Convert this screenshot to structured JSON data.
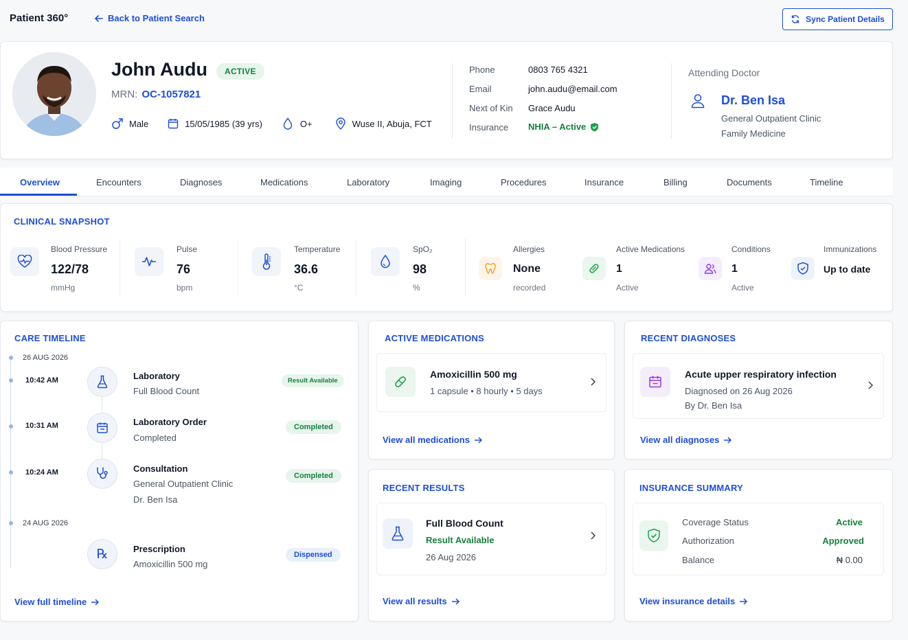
{
  "app": {
    "title": "Patient 360°",
    "back_link": "Back to Patient Search",
    "sync_button": "Sync Patient Details"
  },
  "patient": {
    "name": "John Audu",
    "status": "ACTIVE",
    "mrn_label": "MRN:",
    "mrn": "OC-1057821",
    "sex": "Male",
    "dob": "15/05/1985 (39 yrs)",
    "blood_group": "O+",
    "address": "Wuse II, Abuja, FCT"
  },
  "contact": {
    "phone_label": "Phone",
    "phone": "0803 765 4321",
    "email_label": "Email",
    "email": "john.audu@email.com",
    "kin_label": "Next of Kin",
    "kin": "Grace Audu",
    "insurance_label": "Insurance",
    "insurance": "NHIA – Active"
  },
  "doctor": {
    "heading": "Attending Doctor",
    "name": "Dr. Ben Isa",
    "clinic": "General Outpatient Clinic",
    "specialty": "Family Medicine"
  },
  "tabs": [
    "Overview",
    "Encounters",
    "Diagnoses",
    "Medications",
    "Laboratory",
    "Imaging",
    "Procedures",
    "Insurance",
    "Billing",
    "Documents",
    "Timeline"
  ],
  "active_tab": "Overview",
  "snapshot": {
    "title": "CLINICAL SNAPSHOT",
    "vitals": [
      {
        "label": "Blood Pressure",
        "value": "122/78",
        "unit": "mmHg",
        "icon": "heart-pulse-icon"
      },
      {
        "label": "Pulse",
        "value": "76",
        "unit": "bpm",
        "icon": "pulse-icon"
      },
      {
        "label": "Temperature",
        "value": "36.6",
        "unit": "°C",
        "icon": "thermometer-icon"
      },
      {
        "label": "SpO₂",
        "value": "98",
        "unit": "%",
        "icon": "drop-icon"
      }
    ],
    "summary": [
      {
        "label": "Allergies",
        "value": "None",
        "sub": "recorded",
        "icon": "allergy-icon"
      },
      {
        "label": "Active Medications",
        "value": "1",
        "sub": "Active",
        "icon": "pill-icon"
      },
      {
        "label": "Conditions",
        "value": "1",
        "sub": "Active",
        "icon": "people-icon"
      },
      {
        "label": "Immunizations",
        "value": "Up to date",
        "sub": "",
        "icon": "shield-icon"
      }
    ]
  },
  "timeline": {
    "title": "CARE TIMELINE",
    "date1": "26 AUG 2026",
    "date2": "24 AUG 2026",
    "events": [
      {
        "time": "10:42 AM",
        "title": "Laboratory",
        "sub1": "Full Blood Count",
        "sub2": "",
        "status": "Result Available",
        "icon": "flask-icon"
      },
      {
        "time": "10:31 AM",
        "title": "Laboratory Order",
        "sub1": "Completed",
        "sub2": "",
        "status": "Completed",
        "icon": "calendar-icon"
      },
      {
        "time": "10:24 AM",
        "title": "Consultation",
        "sub1": "General Outpatient Clinic",
        "sub2": "Dr. Ben Isa",
        "status": "Completed",
        "icon": "stethoscope-icon"
      },
      {
        "time": "",
        "title": "Prescription",
        "sub1": "Amoxicillin 500 mg",
        "sub2": "",
        "status": "Dispensed",
        "icon": "rx-icon"
      }
    ],
    "link": "View full timeline"
  },
  "medications": {
    "title": "ACTIVE MEDICATIONS",
    "item_name": "Amoxicillin 500 mg",
    "item_detail": "1 capsule • 8 hourly • 5 days",
    "link": "View all medications"
  },
  "diagnoses": {
    "title": "RECENT DIAGNOSES",
    "item_name": "Acute upper respiratory infection",
    "item_detail": "Diagnosed on 26 Aug 2026",
    "item_by": "By Dr. Ben Isa",
    "link": "View all diagnoses"
  },
  "results": {
    "title": "RECENT RESULTS",
    "item_name": "Full Blood Count",
    "item_status": "Result Available",
    "item_date": "26 Aug 2026",
    "link": "View all results"
  },
  "insurance": {
    "title": "INSURANCE SUMMARY",
    "coverage_label": "Coverage Status",
    "coverage": "Active",
    "auth_label": "Authorization",
    "auth": "Approved",
    "balance_label": "Balance",
    "balance": "₦ 0.00",
    "link": "View insurance details"
  },
  "colors": {
    "accent": "#1d4ed8",
    "success": "#15803d",
    "success_bg": "#e7f5ec"
  }
}
